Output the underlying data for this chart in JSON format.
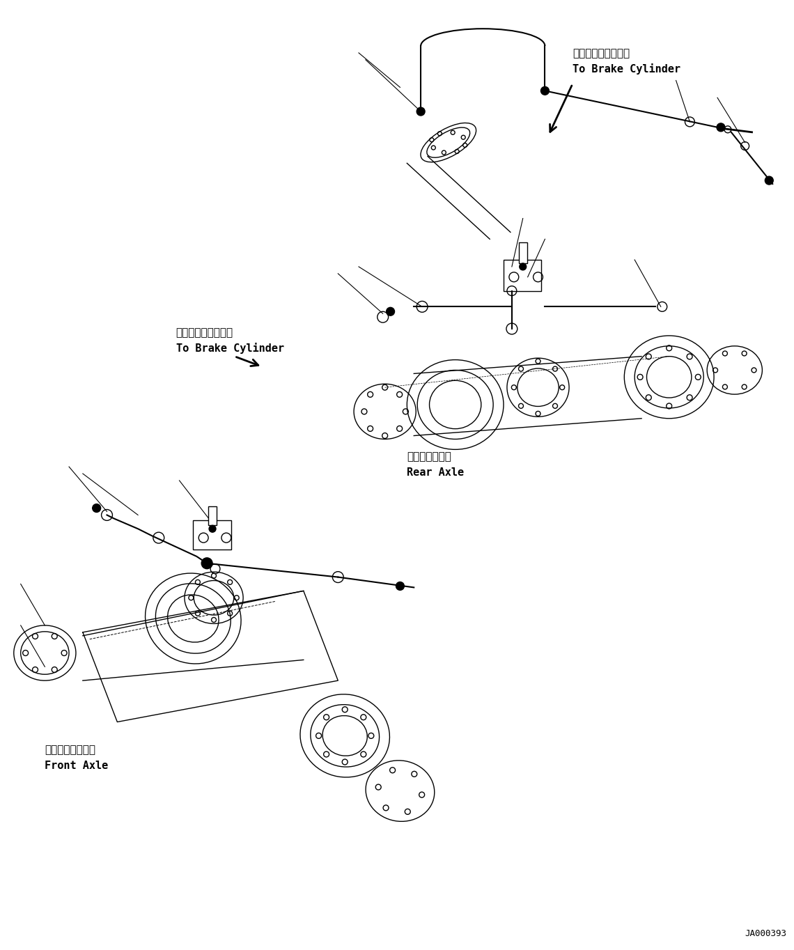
{
  "bg_color": "#ffffff",
  "line_color": "#000000",
  "line_width": 1.0,
  "title": "",
  "part_number": "JA000393",
  "labels": {
    "brake_cylinder_top_jp": "ブレーキシリンダへ",
    "brake_cylinder_top_en": "To Brake Cylinder",
    "brake_cylinder_mid_jp": "ブレーキシリンダへ",
    "brake_cylinder_mid_en": "To Brake Cylinder",
    "rear_axle_jp": "リヤーアクスル",
    "rear_axle_en": "Rear Axle",
    "front_axle_jp": "フロントアクスル",
    "front_axle_en": "Front Axle"
  }
}
